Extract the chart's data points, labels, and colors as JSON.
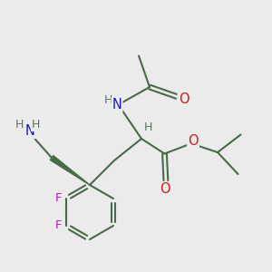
{
  "background_color": "#ebebeb",
  "bond_color": "#4a6a4a",
  "bond_width": 1.5,
  "atom_colors": {
    "C": "#4a6a4a",
    "H": "#607060",
    "N": "#1818bb",
    "O": "#cc1a1a",
    "F": "#bb18bb"
  },
  "figsize": [
    3.0,
    3.0
  ],
  "dpi": 100
}
